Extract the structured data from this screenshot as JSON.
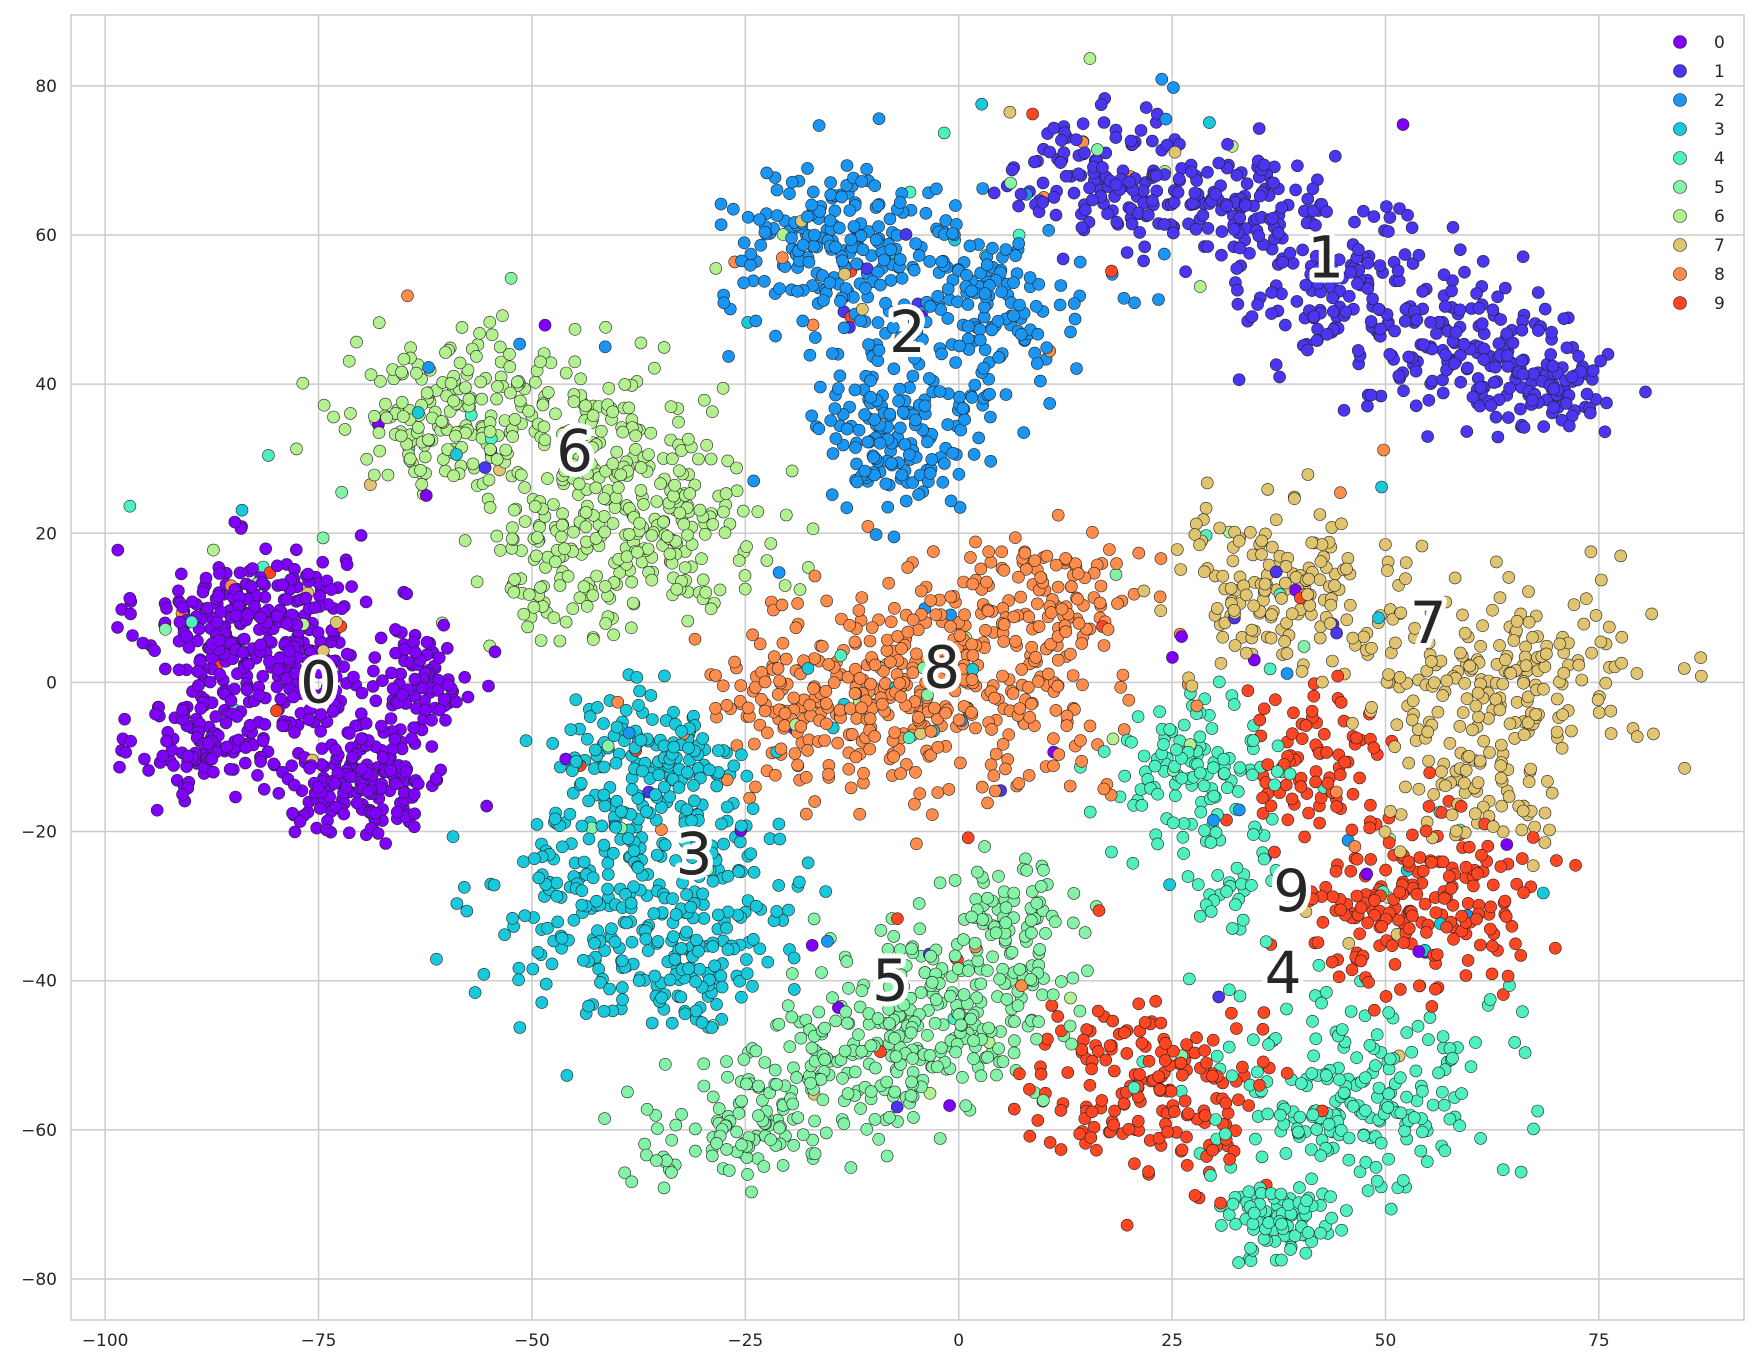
{
  "chart_data": {
    "type": "scatter",
    "title": "",
    "xlabel": "",
    "ylabel": "",
    "xlim": [
      -104,
      92
    ],
    "ylim": [
      -85.5,
      89.5
    ],
    "xticks": [
      -100,
      -75,
      -50,
      -25,
      0,
      25,
      50,
      75
    ],
    "yticks": [
      80,
      60,
      40,
      20,
      0,
      -20,
      -40,
      -60,
      -80
    ],
    "xtick_labels": [
      "−100",
      "−75",
      "−50",
      "−25",
      "0",
      "25",
      "50",
      "75"
    ],
    "ytick_labels": [
      "80",
      "60",
      "40",
      "20",
      "0",
      "−20",
      "−40",
      "−60",
      "−80"
    ],
    "grid": true,
    "legend_position": "top-right",
    "series": [
      {
        "name": "0",
        "color": "#8000ff",
        "center_label": "0",
        "label_at": [
          -75,
          0
        ],
        "blobs": [
          {
            "c": [
              -84,
              8
            ],
            "s": [
              6,
              5
            ],
            "n": 230
          },
          {
            "c": [
              -88,
              -8
            ],
            "s": [
              4,
              4
            ],
            "n": 110
          },
          {
            "c": [
              -70,
              -13
            ],
            "s": [
              5,
              4
            ],
            "n": 170
          },
          {
            "c": [
              -63,
              0
            ],
            "s": [
              3,
              4
            ],
            "n": 90
          },
          {
            "c": [
              -77,
              2
            ],
            "s": [
              5,
              7
            ],
            "n": 120
          }
        ]
      },
      {
        "name": "1",
        "color": "#4a35f0",
        "center_label": "1",
        "label_at": [
          43,
          57
        ],
        "blobs": [
          {
            "c": [
              18,
              68
            ],
            "s": [
              6,
              4
            ],
            "n": 130
          },
          {
            "c": [
              33,
              63
            ],
            "s": [
              6,
              4
            ],
            "n": 120
          },
          {
            "c": [
              46,
              52
            ],
            "s": [
              6,
              5
            ],
            "n": 140
          },
          {
            "c": [
              60,
              45
            ],
            "s": [
              6,
              5
            ],
            "n": 130
          },
          {
            "c": [
              70,
              39
            ],
            "s": [
              4,
              3
            ],
            "n": 70
          }
        ]
      },
      {
        "name": "2",
        "color": "#1996f3",
        "center_label": "2",
        "label_at": [
          -6,
          47
        ],
        "blobs": [
          {
            "c": [
              -14,
              59
            ],
            "s": [
              7,
              5
            ],
            "n": 190
          },
          {
            "c": [
              2,
              49
            ],
            "s": [
              7,
              6
            ],
            "n": 170
          },
          {
            "c": [
              -8,
              33
            ],
            "s": [
              5,
              6
            ],
            "n": 150
          }
        ]
      },
      {
        "name": "3",
        "color": "#18c9dc",
        "center_label": "3",
        "label_at": [
          -31,
          -23
        ],
        "blobs": [
          {
            "c": [
              -37,
              -12
            ],
            "s": [
              6,
              6
            ],
            "n": 160
          },
          {
            "c": [
              -43,
              -30
            ],
            "s": [
              6,
              7
            ],
            "n": 160
          },
          {
            "c": [
              -31,
              -38
            ],
            "s": [
              5,
              5
            ],
            "n": 100
          },
          {
            "c": [
              -27,
              -25
            ],
            "s": [
              5,
              6
            ],
            "n": 80
          }
        ]
      },
      {
        "name": "4",
        "color": "#4df0c0",
        "center_label": "4",
        "label_at": [
          38,
          -39
        ],
        "blobs": [
          {
            "c": [
              27,
              -12
            ],
            "s": [
              5,
              5
            ],
            "n": 120
          },
          {
            "c": [
              47,
              -55
            ],
            "s": [
              8,
              7
            ],
            "n": 220
          },
          {
            "c": [
              37,
              -72
            ],
            "s": [
              3,
              3
            ],
            "n": 90
          },
          {
            "c": [
              32,
              -28
            ],
            "s": [
              3,
              4
            ],
            "n": 30
          }
        ]
      },
      {
        "name": "5",
        "color": "#85f3a7",
        "center_label": "5",
        "label_at": [
          -8,
          -40
        ],
        "blobs": [
          {
            "c": [
              0,
              -42
            ],
            "s": [
              7,
              6
            ],
            "n": 200
          },
          {
            "c": [
              -15,
              -53
            ],
            "s": [
              7,
              5
            ],
            "n": 160
          },
          {
            "c": [
              -29,
              -61
            ],
            "s": [
              5,
              3
            ],
            "n": 70
          },
          {
            "c": [
              7,
              -31
            ],
            "s": [
              3,
              4
            ],
            "n": 60
          }
        ]
      },
      {
        "name": "6",
        "color": "#b3f08f",
        "center_label": "6",
        "label_at": [
          -45,
          31
        ],
        "blobs": [
          {
            "c": [
              -60,
              36
            ],
            "s": [
              6,
              5
            ],
            "n": 160
          },
          {
            "c": [
              -43,
              32
            ],
            "s": [
              7,
              6
            ],
            "n": 190
          },
          {
            "c": [
              -33,
              20
            ],
            "s": [
              6,
              5
            ],
            "n": 130
          },
          {
            "c": [
              -47,
              14
            ],
            "s": [
              5,
              5
            ],
            "n": 80
          }
        ]
      },
      {
        "name": "7",
        "color": "#e1c46f",
        "center_label": "7",
        "label_at": [
          55,
          8
        ],
        "blobs": [
          {
            "c": [
              38,
              13
            ],
            "s": [
              7,
              5
            ],
            "n": 160
          },
          {
            "c": [
              64,
              1
            ],
            "s": [
              9,
              6
            ],
            "n": 200
          },
          {
            "c": [
              61,
              -15
            ],
            "s": [
              5,
              4
            ],
            "n": 70
          }
        ]
      },
      {
        "name": "8",
        "color": "#ff8c4a",
        "center_label": "8",
        "label_at": [
          -2,
          2
        ],
        "blobs": [
          {
            "c": [
              -4,
              -1
            ],
            "s": [
              10,
              7
            ],
            "n": 330
          },
          {
            "c": [
              9,
              10
            ],
            "s": [
              6,
              5
            ],
            "n": 130
          },
          {
            "c": [
              -20,
              -4
            ],
            "s": [
              5,
              5
            ],
            "n": 80
          }
        ]
      },
      {
        "name": "9",
        "color": "#ff4522",
        "center_label": "9",
        "label_at": [
          39,
          -28
        ],
        "blobs": [
          {
            "c": [
              54,
              -30
            ],
            "s": [
              7,
              6
            ],
            "n": 200
          },
          {
            "c": [
              42,
              -10
            ],
            "s": [
              4,
              5
            ],
            "n": 80
          },
          {
            "c": [
              22,
              -55
            ],
            "s": [
              7,
              6
            ],
            "n": 180
          }
        ]
      }
    ]
  }
}
